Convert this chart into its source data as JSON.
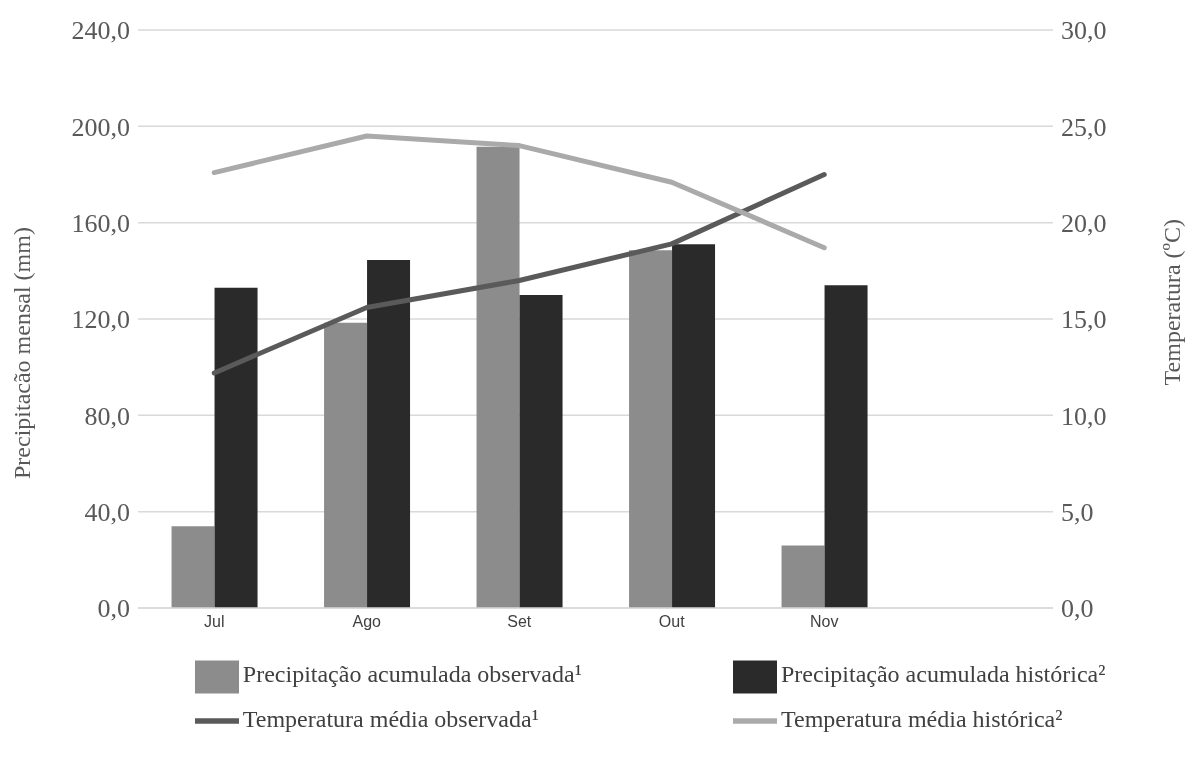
{
  "chart_data": {
    "type": "bar",
    "categories": [
      "Jul",
      "Ago",
      "Set",
      "Out",
      "Nov",
      null
    ],
    "ylabel": "Precipitacão mensal (mm)",
    "y2label": "Temperatura (ºC)",
    "series": [
      {
        "name": "Precipitação acumulada observada¹",
        "color": "#8c8c8c",
        "values": [
          34,
          118.5,
          191.5,
          148.5,
          26,
          null
        ]
      },
      {
        "name": "Precipitação acumulada histórica²",
        "color": "#2a2a2a",
        "values": [
          133,
          144.5,
          130,
          151,
          134,
          null
        ]
      },
      {
        "name": "Temperatura média observada¹",
        "type": "line",
        "axis": "y2",
        "color": "#5a5a5a",
        "values": [
          12.2,
          15.6,
          17.0,
          18.9,
          22.5,
          null
        ]
      },
      {
        "name": "Temperatura média histórica²",
        "type": "line",
        "axis": "y2",
        "color": "#aaaaaa",
        "values": [
          22.6,
          24.5,
          24.0,
          22.1,
          18.7,
          null
        ]
      }
    ],
    "ylim": [
      0,
      240
    ],
    "yticks": [
      {
        "value": 0,
        "label": "0,0"
      },
      {
        "value": 40,
        "label": "40,0"
      },
      {
        "value": 80,
        "label": "80,0"
      },
      {
        "value": 120,
        "label": "120,0"
      },
      {
        "value": 160,
        "label": "160,0"
      },
      {
        "value": 200,
        "label": "200,0"
      },
      {
        "value": 240,
        "label": "240,0"
      }
    ],
    "y2lim": [
      0,
      30
    ],
    "y2ticks": [
      {
        "value": 0,
        "label": "0,0"
      },
      {
        "value": 5,
        "label": "5,0"
      },
      {
        "value": 10,
        "label": "10,0"
      },
      {
        "value": 15,
        "label": "15,0"
      },
      {
        "value": 20,
        "label": "20,0"
      },
      {
        "value": 25,
        "label": "25,0"
      },
      {
        "value": 30,
        "label": "30,0"
      }
    ],
    "grid": "y",
    "legend": "bottom",
    "marker": "none",
    "line_style": "solid"
  }
}
